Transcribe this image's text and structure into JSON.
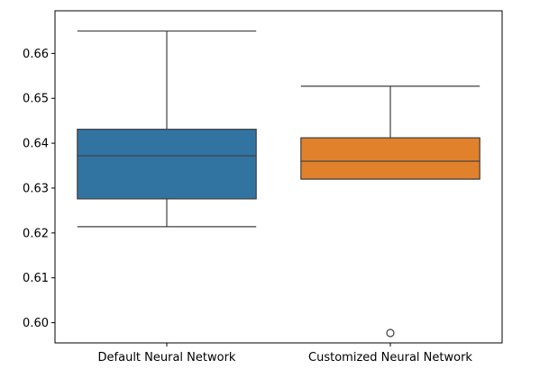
{
  "chart_data": {
    "type": "box",
    "title": "",
    "xlabel": "",
    "ylabel": "",
    "ylim": [
      0.5955,
      0.6695
    ],
    "yticks": [
      0.6,
      0.61,
      0.62,
      0.63,
      0.64,
      0.65,
      0.66
    ],
    "ytick_labels": [
      "0.60",
      "0.61",
      "0.62",
      "0.63",
      "0.64",
      "0.65",
      "0.66"
    ],
    "grid": false,
    "legend": "none",
    "categories": [
      "Default Neural Network",
      "Customized Neural Network"
    ],
    "boxes": [
      {
        "category": "Default Neural Network",
        "color": "#3274a1",
        "whisker_low": 0.6214,
        "q1": 0.6276,
        "median": 0.6372,
        "q3": 0.6431,
        "whisker_high": 0.665,
        "outliers": []
      },
      {
        "category": "Customized Neural Network",
        "color": "#e1812c",
        "whisker_low": 0.632,
        "q1": 0.632,
        "median": 0.636,
        "q3": 0.6412,
        "whisker_high": 0.6527,
        "outliers": [
          0.5977
        ]
      }
    ]
  }
}
